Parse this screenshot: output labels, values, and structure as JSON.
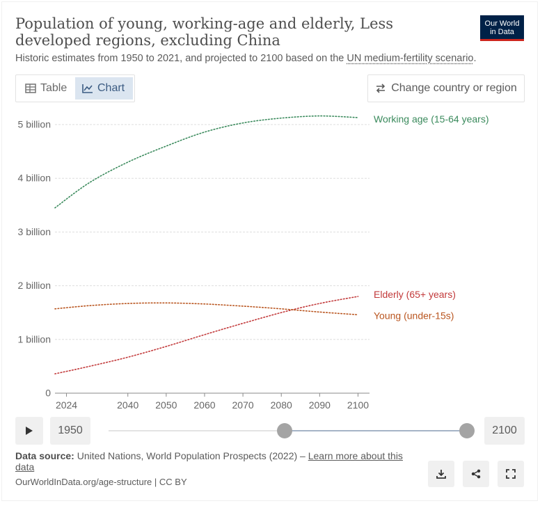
{
  "header": {
    "title": "Population of young, working-age and elderly, Less developed regions, excluding China",
    "subtitle_pre": "Historic estimates from 1950 to 2021, and projected to 2100 based on the ",
    "subtitle_link": "UN medium-fertility scenario",
    "subtitle_post": ".",
    "logo_line1": "Our World",
    "logo_line2": "in Data"
  },
  "tabs": {
    "table_label": "Table",
    "chart_label": "Chart"
  },
  "controls": {
    "change_region_label": "Change country or region"
  },
  "timeline": {
    "start_year": "1950",
    "end_year": "2100"
  },
  "footer": {
    "data_source_label": "Data source:",
    "data_source_text": " United Nations, World Population Prospects (2022) – ",
    "learn_more": "Learn more about this data",
    "url": "OurWorldInData.org/age-structure | CC BY"
  },
  "colors": {
    "working": "#3a8a5c",
    "elderly": "#c2393a",
    "young": "#b9551f",
    "grid": "#dddddd"
  },
  "chart_data": {
    "type": "line",
    "title": "Population of young, working-age and elderly, Less developed regions, excluding China",
    "xlim": [
      2021,
      2103
    ],
    "ylim": [
      0,
      5.5
    ],
    "xticks": [
      "2024",
      "2040",
      "2050",
      "2060",
      "2070",
      "2080",
      "2090",
      "2100"
    ],
    "yticks": [
      {
        "value": 0,
        "label": "0"
      },
      {
        "value": 1,
        "label": "1 billion"
      },
      {
        "value": 2,
        "label": "2 billion"
      },
      {
        "value": 3,
        "label": "3 billion"
      },
      {
        "value": 4,
        "label": "4 billion"
      },
      {
        "value": 5,
        "label": "5 billion"
      }
    ],
    "x": [
      2021,
      2030,
      2040,
      2050,
      2060,
      2070,
      2080,
      2090,
      2100
    ],
    "series": [
      {
        "name": "Working age (15-64 years)",
        "color": "#3a8a5c",
        "values": [
          3.45,
          3.92,
          4.3,
          4.6,
          4.86,
          5.03,
          5.12,
          5.16,
          5.13
        ]
      },
      {
        "name": "Elderly (65+ years)",
        "color": "#c2393a",
        "values": [
          0.36,
          0.5,
          0.67,
          0.87,
          1.09,
          1.3,
          1.5,
          1.67,
          1.8
        ]
      },
      {
        "name": "Young (under-15s)",
        "color": "#b9551f",
        "values": [
          1.57,
          1.63,
          1.67,
          1.68,
          1.66,
          1.62,
          1.57,
          1.51,
          1.46
        ]
      }
    ]
  }
}
